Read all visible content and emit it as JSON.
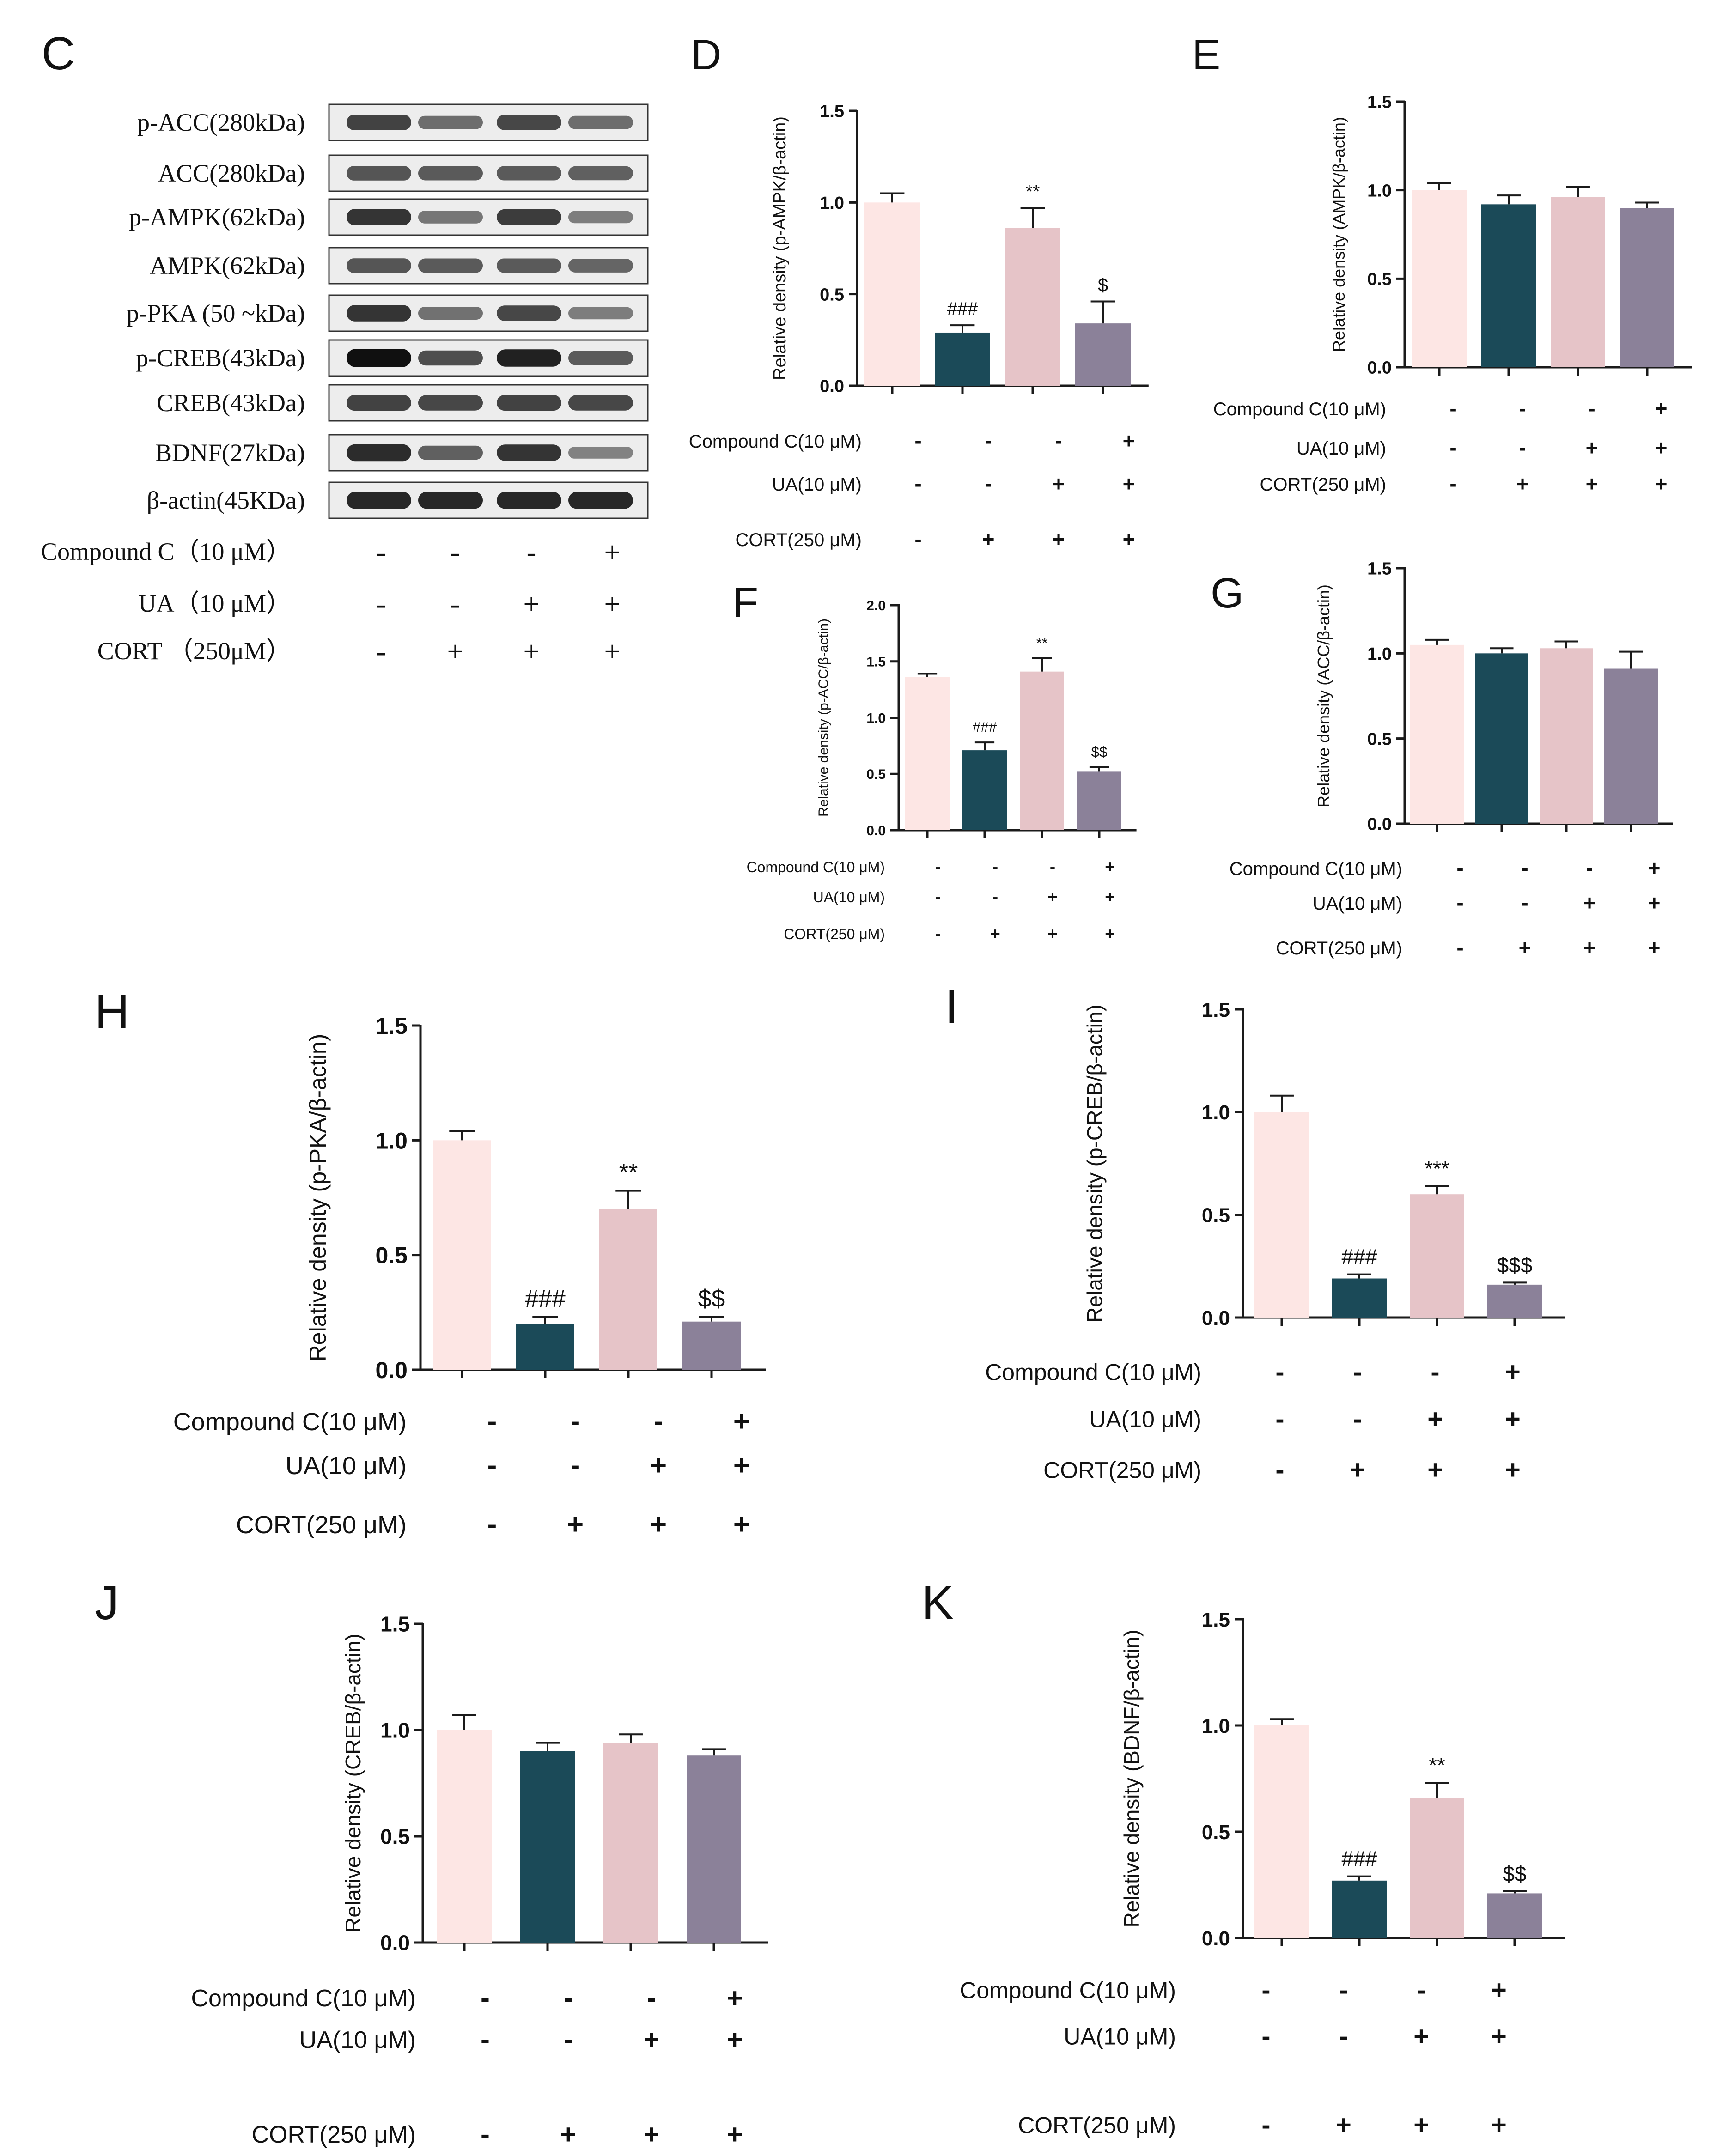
{
  "colors": {
    "group1": "#fde6e4",
    "group2": "#1b4a58",
    "group3": "#e6c4c8",
    "group4": "#8b8199",
    "axis": "#1a1a1a"
  },
  "panel_c": {
    "letter": "C",
    "bands": [
      {
        "label": "p-ACC(280kDa)",
        "intensity": [
          0.8,
          0.62,
          0.78,
          0.62
        ]
      },
      {
        "label": "ACC(280kDa)",
        "intensity": [
          0.72,
          0.7,
          0.7,
          0.68
        ]
      },
      {
        "label": "p-AMPK(62kDa)",
        "intensity": [
          0.85,
          0.58,
          0.82,
          0.55
        ]
      },
      {
        "label": "AMPK(62kDa)",
        "intensity": [
          0.72,
          0.7,
          0.7,
          0.66
        ]
      },
      {
        "label": "p-PKA (50 ~kDa)",
        "intensity": [
          0.85,
          0.6,
          0.78,
          0.55
        ]
      },
      {
        "label": "p-CREB(43kDa)",
        "intensity": [
          0.98,
          0.75,
          0.92,
          0.7
        ]
      },
      {
        "label": "CREB(43kDa)",
        "intensity": [
          0.8,
          0.78,
          0.8,
          0.78
        ]
      },
      {
        "label": "BDNF(27kDa)",
        "intensity": [
          0.88,
          0.68,
          0.85,
          0.52
        ]
      },
      {
        "label": "β-actin(45KDa)",
        "intensity": [
          0.9,
          0.9,
          0.9,
          0.9
        ]
      }
    ],
    "conditions": [
      {
        "label": "Compound C（10 μM）",
        "signs": [
          "-",
          "-",
          "-",
          "+"
        ]
      },
      {
        "label": "UA（10 μM）",
        "signs": [
          "-",
          "-",
          "+",
          "+"
        ]
      },
      {
        "label": "CORT （250μM）",
        "signs": [
          "-",
          "+",
          "+",
          "+"
        ]
      }
    ]
  },
  "chart_data": [
    {
      "id": "D",
      "type": "bar",
      "letter": "D",
      "ylabel": "Relative density (p-AMPK/β-actin)",
      "ylim": [
        0,
        1.5
      ],
      "ticks": [
        "0.0",
        "0.5",
        "1.0",
        "1.5"
      ],
      "values": [
        1.0,
        0.29,
        0.86,
        0.34
      ],
      "errors": [
        0.05,
        0.04,
        0.11,
        0.12
      ],
      "annotations": [
        "",
        "###",
        "**",
        "$"
      ],
      "conditions": [
        {
          "label": "Compound C(10 μM)",
          "signs": [
            "-",
            "-",
            "-",
            "+"
          ]
        },
        {
          "label": "UA(10 μM)",
          "signs": [
            "-",
            "-",
            "+",
            "+"
          ]
        },
        {
          "label": "CORT(250 μM)",
          "signs": [
            "-",
            "+",
            "+",
            "+"
          ]
        }
      ]
    },
    {
      "id": "E",
      "type": "bar",
      "letter": "E",
      "ylabel": "Relative density (AMPK/β-actin)",
      "ylim": [
        0,
        1.5
      ],
      "ticks": [
        "0.0",
        "0.5",
        "1.0",
        "1.5"
      ],
      "values": [
        1.0,
        0.92,
        0.96,
        0.9
      ],
      "errors": [
        0.04,
        0.05,
        0.06,
        0.03
      ],
      "annotations": [
        "",
        "",
        "",
        ""
      ],
      "conditions": [
        {
          "label": "Compound C(10 μM)",
          "signs": [
            "-",
            "-",
            "-",
            "+"
          ]
        },
        {
          "label": "UA(10 μM)",
          "signs": [
            "-",
            "-",
            "+",
            "+"
          ]
        },
        {
          "label": "CORT(250 μM)",
          "signs": [
            "-",
            "+",
            "+",
            "+"
          ]
        }
      ]
    },
    {
      "id": "F",
      "type": "bar",
      "letter": "F",
      "ylabel": "Relative density (p-ACC/β-actin)",
      "ylim": [
        0,
        2.0
      ],
      "ticks": [
        "0.0",
        "0.5",
        "1.0",
        "1.5",
        "2.0"
      ],
      "values": [
        1.36,
        0.71,
        1.41,
        0.52
      ],
      "errors": [
        0.03,
        0.07,
        0.12,
        0.04
      ],
      "annotations": [
        "",
        "###",
        "**",
        "$$"
      ],
      "conditions": [
        {
          "label": "Compound C(10 μM)",
          "signs": [
            "-",
            "-",
            "-",
            "+"
          ]
        },
        {
          "label": "UA(10 μM)",
          "signs": [
            "-",
            "-",
            "+",
            "+"
          ]
        },
        {
          "label": "CORT(250 μM)",
          "signs": [
            "-",
            "+",
            "+",
            "+"
          ]
        }
      ]
    },
    {
      "id": "G",
      "type": "bar",
      "letter": "G",
      "ylabel": "Relative density (ACC/β-actin)",
      "ylim": [
        0,
        1.5
      ],
      "ticks": [
        "0.0",
        "0.5",
        "1.0",
        "1.5"
      ],
      "values": [
        1.05,
        1.0,
        1.03,
        0.91
      ],
      "errors": [
        0.03,
        0.03,
        0.04,
        0.1
      ],
      "annotations": [
        "",
        "",
        "",
        ""
      ],
      "conditions": [
        {
          "label": "Compound C(10 μM)",
          "signs": [
            "-",
            "-",
            "-",
            "+"
          ]
        },
        {
          "label": "UA(10 μM)",
          "signs": [
            "-",
            "-",
            "+",
            "+"
          ]
        },
        {
          "label": "CORT(250 μM)",
          "signs": [
            "-",
            "+",
            "+",
            "+"
          ]
        }
      ]
    },
    {
      "id": "H",
      "type": "bar",
      "letter": "H",
      "ylabel": "Relative density (p-PKA/β-actin)",
      "ylim": [
        0,
        1.5
      ],
      "ticks": [
        "0.0",
        "0.5",
        "1.0",
        "1.5"
      ],
      "values": [
        1.0,
        0.2,
        0.7,
        0.21
      ],
      "errors": [
        0.04,
        0.03,
        0.08,
        0.02
      ],
      "annotations": [
        "",
        "###",
        "**",
        "$$"
      ],
      "conditions": [
        {
          "label": "Compound C(10 μM)",
          "signs": [
            "-",
            "-",
            "-",
            "+"
          ]
        },
        {
          "label": "UA(10 μM)",
          "signs": [
            "-",
            "-",
            "+",
            "+"
          ]
        },
        {
          "label": "CORT(250 μM)",
          "signs": [
            "-",
            "+",
            "+",
            "+"
          ]
        }
      ]
    },
    {
      "id": "I",
      "type": "bar",
      "letter": "I",
      "ylabel": "Relative density (p-CREB/β-actin)",
      "ylim": [
        0,
        1.5
      ],
      "ticks": [
        "0.0",
        "0.5",
        "1.0",
        "1.5"
      ],
      "values": [
        1.0,
        0.19,
        0.6,
        0.16
      ],
      "errors": [
        0.08,
        0.02,
        0.04,
        0.01
      ],
      "annotations": [
        "",
        "###",
        "***",
        "$$$"
      ],
      "conditions": [
        {
          "label": "Compound C(10 μM)",
          "signs": [
            "-",
            "-",
            "-",
            "+"
          ]
        },
        {
          "label": "UA(10 μM)",
          "signs": [
            "-",
            "-",
            "+",
            "+"
          ]
        },
        {
          "label": "CORT(250 μM)",
          "signs": [
            "-",
            "+",
            "+",
            "+"
          ]
        }
      ]
    },
    {
      "id": "J",
      "type": "bar",
      "letter": "J",
      "ylabel": "Relative density (CREB/β-actin)",
      "ylim": [
        0,
        1.5
      ],
      "ticks": [
        "0.0",
        "0.5",
        "1.0",
        "1.5"
      ],
      "values": [
        1.0,
        0.9,
        0.94,
        0.88
      ],
      "errors": [
        0.07,
        0.04,
        0.04,
        0.03
      ],
      "annotations": [
        "",
        "",
        "",
        ""
      ],
      "conditions": [
        {
          "label": "Compound C(10 μM)",
          "signs": [
            "-",
            "-",
            "-",
            "+"
          ]
        },
        {
          "label": "UA(10 μM)",
          "signs": [
            "-",
            "-",
            "+",
            "+"
          ]
        },
        {
          "label": "CORT(250 μM)",
          "signs": [
            "-",
            "+",
            "+",
            "+"
          ]
        }
      ]
    },
    {
      "id": "K",
      "type": "bar",
      "letter": "K",
      "ylabel": "Relative density (BDNF/β-actin)",
      "ylim": [
        0,
        1.5
      ],
      "ticks": [
        "0.0",
        "0.5",
        "1.0",
        "1.5"
      ],
      "values": [
        1.0,
        0.27,
        0.66,
        0.21
      ],
      "errors": [
        0.03,
        0.02,
        0.07,
        0.01
      ],
      "annotations": [
        "",
        "###",
        "**",
        "$$"
      ],
      "conditions": [
        {
          "label": "Compound C(10 μM)",
          "signs": [
            "-",
            "-",
            "-",
            "+"
          ]
        },
        {
          "label": "UA(10 μM)",
          "signs": [
            "-",
            "-",
            "+",
            "+"
          ]
        },
        {
          "label": "CORT(250 μM)",
          "signs": [
            "-",
            "+",
            "+",
            "+"
          ]
        }
      ]
    }
  ]
}
